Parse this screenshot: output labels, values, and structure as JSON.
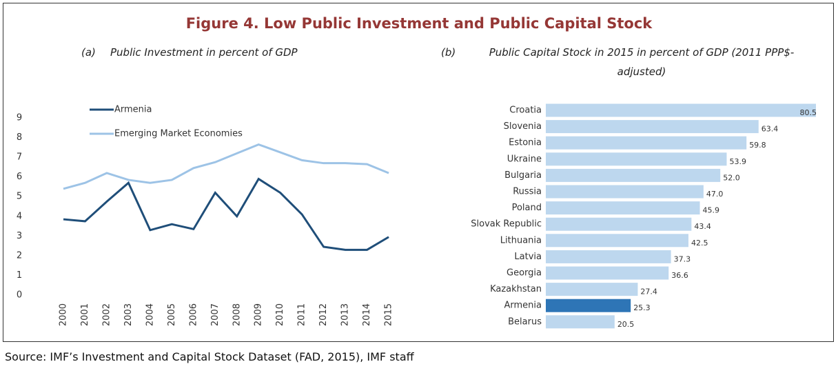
{
  "title": "Figure 4. Low Public Investment and Public Capital Stock",
  "source": "Source: IMF’s Investment and Capital Stock Dataset (FAD, 2015), IMF staff",
  "chart_data": [
    {
      "type": "line",
      "panel": "(a)",
      "title": "Public Investment in percent of GDP",
      "categories": [
        "2000",
        "2001",
        "2002",
        "2003",
        "2004",
        "2005",
        "2006",
        "2007",
        "2008",
        "2009",
        "2010",
        "2011",
        "2012",
        "2013",
        "2014",
        "2015"
      ],
      "series": [
        {
          "name": "Armenia",
          "color": "#1f4e79",
          "values": [
            3.85,
            3.75,
            4.75,
            5.7,
            3.3,
            3.6,
            3.35,
            5.2,
            4.0,
            5.9,
            5.2,
            4.1,
            2.45,
            2.3,
            2.3,
            2.95
          ]
        },
        {
          "name": "Emerging Market Economies",
          "color": "#9dc3e6",
          "values": [
            5.4,
            5.7,
            6.2,
            5.85,
            5.7,
            5.85,
            6.45,
            6.75,
            7.2,
            7.65,
            7.25,
            6.85,
            6.7,
            6.7,
            6.65,
            6.2
          ]
        }
      ],
      "ylim": [
        0,
        9
      ],
      "yticks": [
        0,
        1,
        2,
        3,
        4,
        5,
        6,
        7,
        8,
        9
      ],
      "grid": false,
      "legend": "top-left"
    },
    {
      "type": "hbar",
      "panel": "(b)",
      "title": "Public Capital Stock in 2015 in percent of GDP (2011 PPP$-adjusted)",
      "categories": [
        "Croatia",
        "Slovenia",
        "Estonia",
        "Ukraine",
        "Bulgaria",
        "Russia",
        "Poland",
        "Slovak Republic",
        "Lithuania",
        "Latvia",
        "Georgia",
        "Kazakhstan",
        "Armenia",
        "Belarus"
      ],
      "values": [
        80.5,
        63.4,
        59.8,
        53.9,
        52.0,
        47.0,
        45.9,
        43.4,
        42.5,
        37.3,
        36.6,
        27.4,
        25.3,
        20.5
      ],
      "value_labels": [
        "80.5",
        "63.4",
        "59.8",
        "53.9",
        "52.0",
        "47.0",
        "45.9",
        "43.4",
        "42.5",
        "37.3",
        "36.6",
        "27.4",
        "25.3",
        "20.5"
      ],
      "colors": [
        "#bdd7ee",
        "#bdd7ee",
        "#bdd7ee",
        "#bdd7ee",
        "#bdd7ee",
        "#bdd7ee",
        "#bdd7ee",
        "#bdd7ee",
        "#bdd7ee",
        "#bdd7ee",
        "#bdd7ee",
        "#bdd7ee",
        "#2e75b6",
        "#bdd7ee"
      ]
    }
  ]
}
